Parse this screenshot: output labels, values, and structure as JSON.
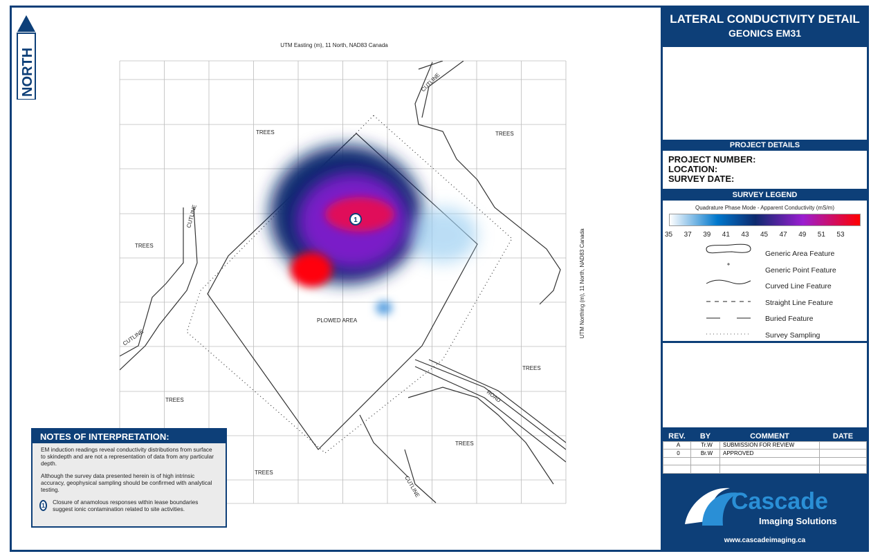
{
  "north": {
    "label": "NORTH"
  },
  "map": {
    "x_axis_label": "UTM Easting (m), 11 North, NAD83 Canada",
    "y_axis_label": "UTM Northing (m), 11 North, NAD83 Canada",
    "labels": {
      "trees": "TREES",
      "cutline": "CUTLINE",
      "plowed": "PLOWED AREA",
      "road": "ROAD"
    },
    "anomaly_marker": "1"
  },
  "panel": {
    "title": "LATERAL CONDUCTIVITY DETAIL",
    "subtitle": "GEONICS EM31",
    "project_header": "PROJECT DETAILS",
    "project_number": "PROJECT NUMBER:",
    "location": "LOCATION:",
    "survey_date": "SURVEY DATE:",
    "legend_header": "SURVEY LEGEND",
    "colorbar_title": "Quadrature Phase Mode - Apparent Conductivity (mS/m)",
    "colorbar_ticks": [
      "35",
      "37",
      "39",
      "41",
      "43",
      "45",
      "47",
      "49",
      "51",
      "53"
    ],
    "colorbar_colors": [
      "#ffffff",
      "#0077cc",
      "#0d2a6e",
      "#9a1ed0",
      "#ff0000"
    ],
    "legend": [
      "Generic Area Feature",
      "Generic Point Feature",
      "Curved Line Feature",
      "Straight Line Feature",
      "Buried Feature",
      "Survey Sampling"
    ]
  },
  "revisions": {
    "headers": [
      "REV.",
      "BY",
      "COMMENT",
      "DATE"
    ],
    "rows": [
      [
        "A",
        "Tr.W",
        "SUBMISSION FOR REVIEW",
        ""
      ],
      [
        "0",
        "Br.W",
        "APPROVED",
        ""
      ],
      [
        "",
        "",
        "",
        ""
      ],
      [
        "",
        "",
        "",
        ""
      ]
    ]
  },
  "logo": {
    "name": "Cascade",
    "tagline": "Imaging Solutions",
    "url": "www.cascadeimaging.ca"
  },
  "notes": {
    "title": "NOTES OF INTERPRETATION:",
    "p1": "EM induction readings reveal conductivity distributions from surface to skindepth and are not a representation of data from any particular depth.",
    "p2": "Although the survey data presented herein is of high intrinsic accuracy, geophysical sampling should be confirmed with analytical testing.",
    "marker": "1",
    "p3": "Closure of anamolous responses within lease boundaries suggest ionic contamination related to site activities."
  }
}
